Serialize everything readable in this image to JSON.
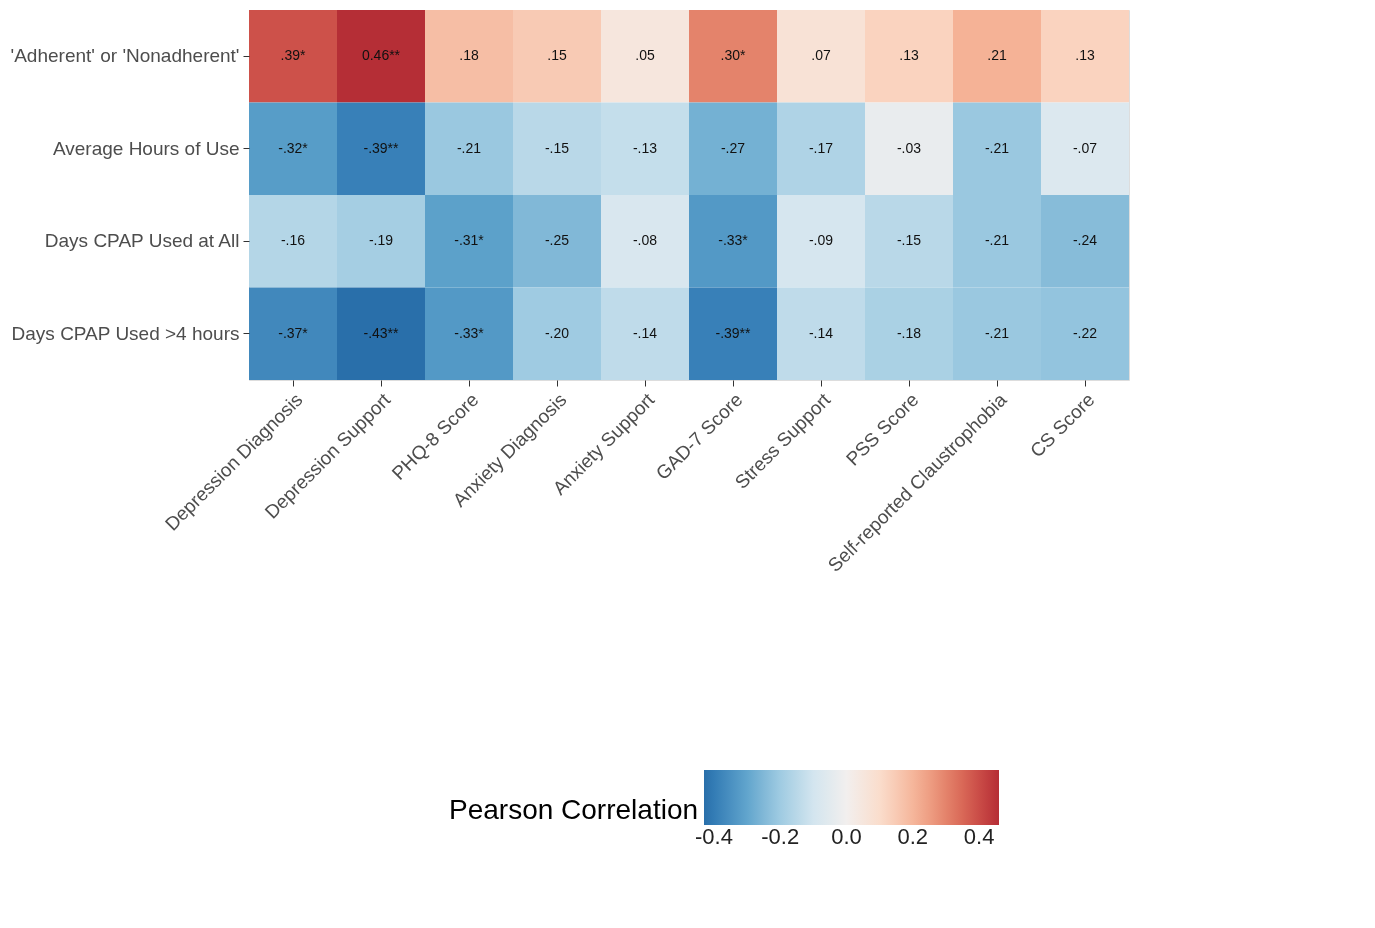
{
  "chart_data": {
    "type": "heatmap",
    "clabel": "Pearson Correlation",
    "categories": [
      "Depression Diagnosis",
      "Depression Support",
      "PHQ-8 Score",
      "Anxiety Diagnosis",
      "Anxiety Support",
      "GAD-7 Score",
      "Stress Support",
      "PSS Score",
      "Self-reported Claustrophobia",
      "CS Score"
    ],
    "y_categories": [
      "'Adherent' or 'Nonadherent'",
      "Average Hours of Use",
      "Days CPAP Used at All",
      "Days CPAP Used >4 hours"
    ],
    "cells": [
      [
        0.39,
        0.46,
        0.18,
        0.15,
        0.05,
        0.3,
        0.07,
        0.13,
        0.21,
        0.13
      ],
      [
        -0.32,
        -0.39,
        -0.21,
        -0.15,
        -0.13,
        -0.27,
        -0.17,
        -0.03,
        -0.21,
        -0.07
      ],
      [
        -0.16,
        -0.19,
        -0.31,
        -0.25,
        -0.08,
        -0.33,
        -0.09,
        -0.15,
        -0.21,
        -0.24
      ],
      [
        -0.37,
        -0.43,
        -0.33,
        -0.2,
        -0.14,
        -0.39,
        -0.14,
        -0.18,
        -0.21,
        -0.22
      ]
    ],
    "cell_labels": [
      [
        ".39*",
        "0.46**",
        ".18",
        ".15",
        ".05",
        ".30*",
        ".07",
        ".13",
        ".21",
        ".13"
      ],
      [
        "-.32*",
        "-.39**",
        "-.21",
        "-.15",
        "-.13",
        "-.27",
        "-.17",
        "-.03",
        "-.21",
        "-.07"
      ],
      [
        "-.16",
        "-.19",
        "-.31*",
        "-.25",
        "-.08",
        "-.33*",
        "-.09",
        "-.15",
        "-.21",
        "-.24"
      ],
      [
        "-.37*",
        "-.43**",
        "-.33*",
        "-.20",
        "-.14",
        "-.39**",
        "-.14",
        "-.18",
        "-.21",
        "-.22"
      ]
    ],
    "clim": [
      -0.43,
      0.46
    ],
    "cticks": [
      -0.4,
      -0.2,
      {
        "value": 0,
        "label": "0.0"
      },
      0.2,
      0.4
    ],
    "grid": false
  }
}
